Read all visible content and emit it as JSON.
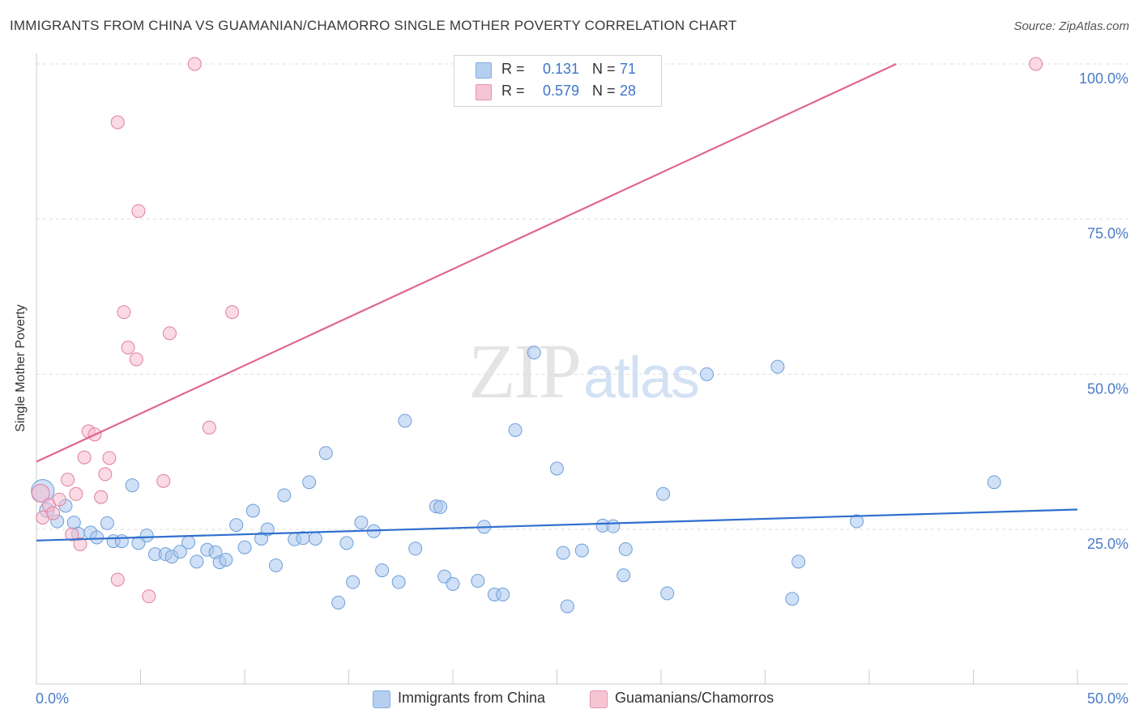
{
  "chart_data": {
    "type": "scatter",
    "title": "IMMIGRANTS FROM CHINA VS GUAMANIAN/CHAMORRO SINGLE MOTHER POVERTY CORRELATION CHART",
    "source": "Source: ZipAtlas.com",
    "xlabel": "",
    "ylabel": "Single Mother Poverty",
    "xlim": [
      0,
      50
    ],
    "ylim": [
      0,
      102
    ],
    "x_tick_labels": [
      "0.0%",
      "50.0%"
    ],
    "y_ticks": [
      25,
      50,
      75,
      100
    ],
    "y_tick_labels": [
      "25.0%",
      "50.0%",
      "75.0%",
      "100.0%"
    ],
    "grid": true,
    "watermark": "ZIPatlas",
    "legend_top": [
      {
        "r_label": "R =",
        "r_value": "0.131",
        "n_label": "N =",
        "n_value": "71"
      },
      {
        "r_label": "R =",
        "r_value": "0.579",
        "n_label": "N =",
        "n_value": "28"
      }
    ],
    "series": [
      {
        "name": "Immigrants from China",
        "color": "#a9c7ef",
        "stroke": "#6f9fd8",
        "line_color": "#2f6fce",
        "trend": {
          "x0": 0,
          "y0": 23.2,
          "x1": 50,
          "y1": 28.2
        },
        "points": [
          [
            0.3,
            31.2,
            14
          ],
          [
            0.5,
            28.1,
            9
          ],
          [
            1.0,
            26.3,
            8
          ],
          [
            1.4,
            28.8,
            8
          ],
          [
            1.8,
            26.1,
            8
          ],
          [
            2.0,
            24.3,
            8
          ],
          [
            2.6,
            24.5,
            8
          ],
          [
            2.9,
            23.7,
            8
          ],
          [
            3.4,
            26.0,
            8
          ],
          [
            3.7,
            23.1,
            8
          ],
          [
            4.1,
            23.1,
            8
          ],
          [
            4.6,
            32.1,
            8
          ],
          [
            4.9,
            22.8,
            8
          ],
          [
            5.3,
            24.0,
            8
          ],
          [
            5.7,
            21.0,
            8
          ],
          [
            6.2,
            21.0,
            8
          ],
          [
            6.5,
            20.6,
            8
          ],
          [
            6.9,
            21.4,
            8
          ],
          [
            7.3,
            22.9,
            8
          ],
          [
            7.7,
            19.8,
            8
          ],
          [
            8.2,
            21.7,
            8
          ],
          [
            8.6,
            21.3,
            8
          ],
          [
            8.8,
            19.7,
            8
          ],
          [
            9.1,
            20.1,
            8
          ],
          [
            9.6,
            25.7,
            8
          ],
          [
            10.0,
            22.1,
            8
          ],
          [
            10.4,
            28.0,
            8
          ],
          [
            10.8,
            23.5,
            8
          ],
          [
            11.1,
            25.0,
            8
          ],
          [
            11.5,
            19.2,
            8
          ],
          [
            11.9,
            30.5,
            8
          ],
          [
            12.4,
            23.4,
            8
          ],
          [
            12.8,
            23.6,
            8
          ],
          [
            13.1,
            32.6,
            8
          ],
          [
            13.4,
            23.5,
            8
          ],
          [
            13.9,
            37.3,
            8
          ],
          [
            14.5,
            13.2,
            8
          ],
          [
            14.9,
            22.8,
            8
          ],
          [
            15.2,
            16.5,
            8
          ],
          [
            15.6,
            26.1,
            8
          ],
          [
            16.2,
            24.7,
            8
          ],
          [
            16.6,
            18.4,
            8
          ],
          [
            17.4,
            16.5,
            8
          ],
          [
            17.7,
            42.5,
            8
          ],
          [
            18.2,
            21.9,
            8
          ],
          [
            19.2,
            28.7,
            8
          ],
          [
            19.4,
            28.6,
            8
          ],
          [
            19.6,
            17.4,
            8
          ],
          [
            20.0,
            16.2,
            8
          ],
          [
            21.2,
            16.7,
            8
          ],
          [
            21.5,
            25.4,
            8
          ],
          [
            22.0,
            14.5,
            8
          ],
          [
            22.4,
            14.5,
            8
          ],
          [
            23.0,
            41.0,
            8
          ],
          [
            23.9,
            53.5,
            8
          ],
          [
            25.0,
            34.8,
            8
          ],
          [
            25.3,
            21.2,
            8
          ],
          [
            25.5,
            12.6,
            8
          ],
          [
            26.2,
            21.6,
            8
          ],
          [
            27.2,
            25.6,
            8
          ],
          [
            27.7,
            25.5,
            8
          ],
          [
            28.2,
            17.6,
            8
          ],
          [
            28.3,
            21.8,
            8
          ],
          [
            30.1,
            30.7,
            8
          ],
          [
            30.3,
            14.7,
            8
          ],
          [
            32.2,
            50.0,
            8
          ],
          [
            35.6,
            51.2,
            8
          ],
          [
            36.3,
            13.8,
            8
          ],
          [
            36.6,
            19.8,
            8
          ],
          [
            39.4,
            26.3,
            8
          ],
          [
            46.0,
            32.6,
            8
          ]
        ]
      },
      {
        "name": "Guamanians/Chamorros",
        "color": "#f5bccd",
        "stroke": "#e07fa0",
        "line_color": "#e06595",
        "trend": {
          "x0": 0,
          "y0": 35.9,
          "x1": 41.3,
          "y1": 100.0
        },
        "points": [
          [
            0.2,
            30.8,
            11
          ],
          [
            0.3,
            26.9,
            8
          ],
          [
            0.6,
            28.9,
            8
          ],
          [
            0.8,
            27.6,
            8
          ],
          [
            1.1,
            29.8,
            8
          ],
          [
            1.5,
            33.0,
            8
          ],
          [
            1.7,
            24.2,
            8
          ],
          [
            1.9,
            30.7,
            8
          ],
          [
            2.1,
            22.6,
            8
          ],
          [
            2.3,
            36.6,
            8
          ],
          [
            2.5,
            40.8,
            8
          ],
          [
            2.8,
            40.3,
            8
          ],
          [
            3.1,
            30.2,
            8
          ],
          [
            3.3,
            33.9,
            8
          ],
          [
            3.5,
            36.5,
            8
          ],
          [
            3.9,
            90.6,
            8
          ],
          [
            3.9,
            16.9,
            8
          ],
          [
            4.2,
            60.0,
            8
          ],
          [
            4.4,
            54.3,
            8
          ],
          [
            4.8,
            52.4,
            8
          ],
          [
            4.9,
            76.3,
            8
          ],
          [
            5.4,
            14.2,
            8
          ],
          [
            6.1,
            32.8,
            8
          ],
          [
            6.4,
            56.6,
            8
          ],
          [
            7.6,
            100.0,
            8
          ],
          [
            8.3,
            41.4,
            8
          ],
          [
            9.4,
            60.0,
            8
          ],
          [
            48.0,
            100.0,
            8
          ]
        ]
      }
    ]
  }
}
